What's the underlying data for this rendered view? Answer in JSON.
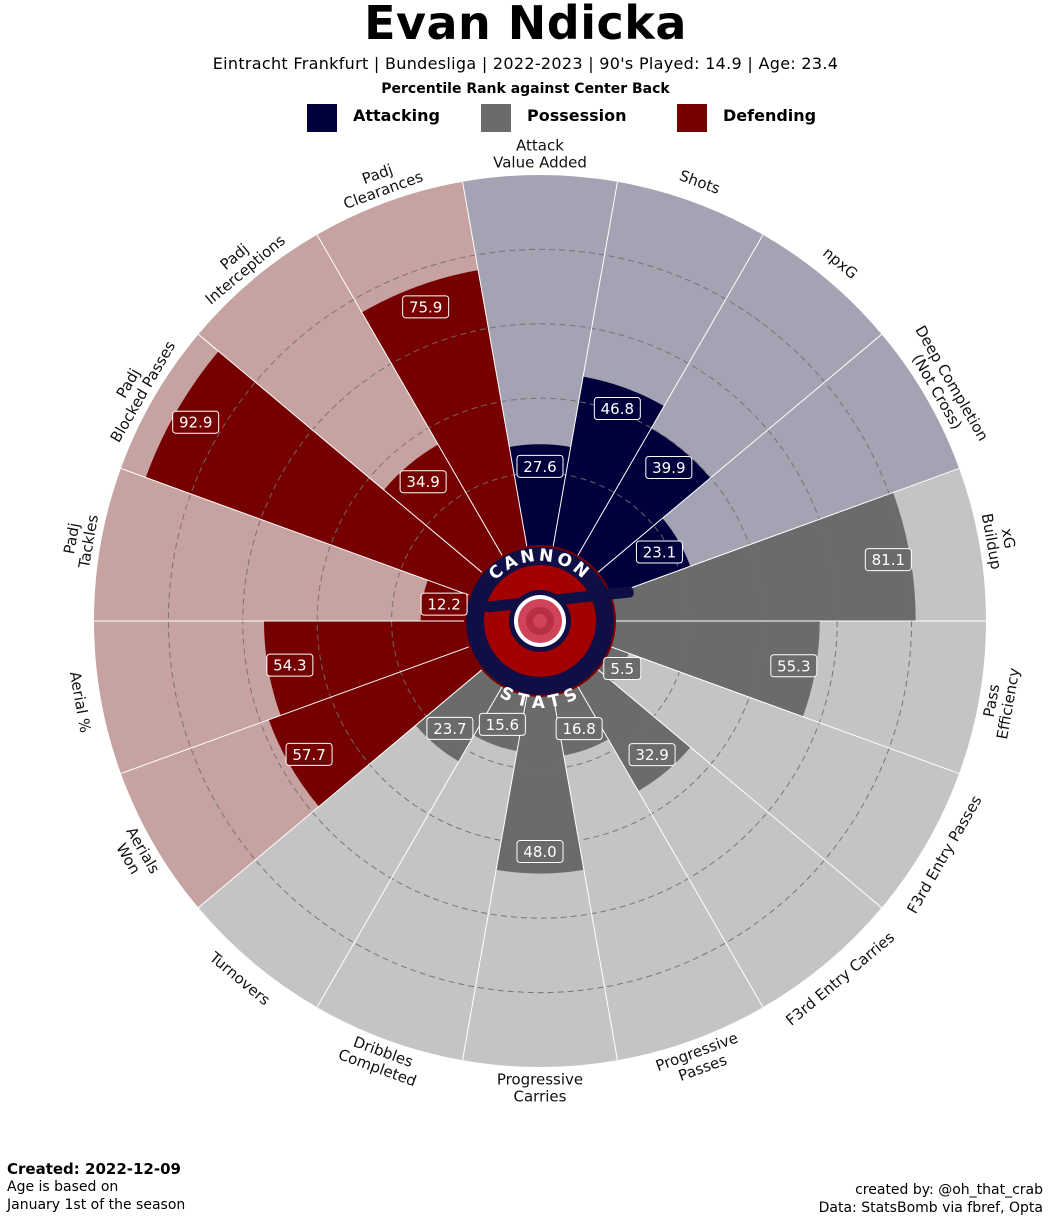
{
  "header": {
    "title": "Evan Ndicka",
    "subtitle": "Eintracht Frankfurt  | Bundesliga | 2022-2023 | 90's Played: 14.9 | Age: 23.4",
    "subheading": "Percentile Rank against Center Back"
  },
  "legend": [
    {
      "label": "Attacking",
      "color": "#00003c"
    },
    {
      "label": "Possession",
      "color": "#6b6b6b"
    },
    {
      "label": "Defending",
      "color": "#760000"
    }
  ],
  "logo": {
    "top_text": "CANNON",
    "bottom_text": "STATS"
  },
  "chart_data": {
    "type": "polar-bar",
    "title": "Evan Ndicka",
    "rlim": [
      0,
      100
    ],
    "grid": "dashed rings at 20, 40, 60, 80",
    "categories": [
      {
        "label": "Attack\nValue Added",
        "value": 27.6,
        "group": "Attacking"
      },
      {
        "label": "Shots",
        "value": 46.8,
        "group": "Attacking"
      },
      {
        "label": "npxG",
        "value": 39.9,
        "group": "Attacking"
      },
      {
        "label": "Deep Completion\n(Not Cross)",
        "value": 23.1,
        "group": "Attacking"
      },
      {
        "label": "xG\nBuildup",
        "value": 81.1,
        "group": "Possession"
      },
      {
        "label": "Pass\nEfficiency",
        "value": 55.3,
        "group": "Possession"
      },
      {
        "label": "F3rd Entry Passes",
        "value": 5.5,
        "group": "Possession"
      },
      {
        "label": "F3rd Entry Carries",
        "value": 32.9,
        "group": "Possession"
      },
      {
        "label": "Progressive\nPasses",
        "value": 16.8,
        "group": "Possession"
      },
      {
        "label": "Progressive\nCarries",
        "value": 48.0,
        "group": "Possession"
      },
      {
        "label": "Dribbles\nCompleted",
        "value": 15.6,
        "group": "Possession"
      },
      {
        "label": "Turnovers",
        "value": 23.7,
        "group": "Possession"
      },
      {
        "label": "Aerials\nWon",
        "value": 57.7,
        "group": "Defending"
      },
      {
        "label": "Aerial %",
        "value": 54.3,
        "group": "Defending"
      },
      {
        "label": "Padj\nTackles",
        "value": 12.2,
        "group": "Defending"
      },
      {
        "label": "Padj\nBlocked Passes",
        "value": 92.9,
        "group": "Defending"
      },
      {
        "label": "Padj\nInterceptions",
        "value": 34.9,
        "group": "Defending"
      },
      {
        "label": "Padj\nClearances",
        "value": 75.9,
        "group": "Defending"
      }
    ],
    "group_colors": {
      "Attacking": {
        "bar": "#00003c",
        "background": "#a3a3b3"
      },
      "Possession": {
        "bar": "#6b6b6b",
        "background": "#c4c4c4"
      },
      "Defending": {
        "bar": "#760000",
        "background": "#c6a2a0"
      }
    }
  },
  "footer": {
    "created": "Created: 2022-12-09",
    "age_note_1": "Age is based on",
    "age_note_2": "January 1st of the season",
    "credit": "created by: @oh_that_crab",
    "source": "Data: StatsBomb via fbref, Opta"
  }
}
